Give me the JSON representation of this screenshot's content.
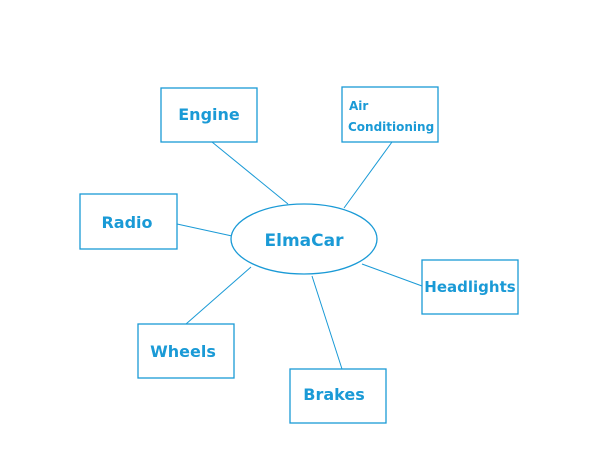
{
  "colors": {
    "stroke": "#1a9ad6",
    "text": "#1a9ad6",
    "background": "#ffffff"
  },
  "center": {
    "label": "ElmaCar"
  },
  "nodes": {
    "engine": "Engine",
    "air_conditioning_line1": "Air",
    "air_conditioning_line2": "Conditioning",
    "radio": "Radio",
    "headlights": "Headlights",
    "wheels": "Wheels",
    "brakes": "Brakes"
  }
}
